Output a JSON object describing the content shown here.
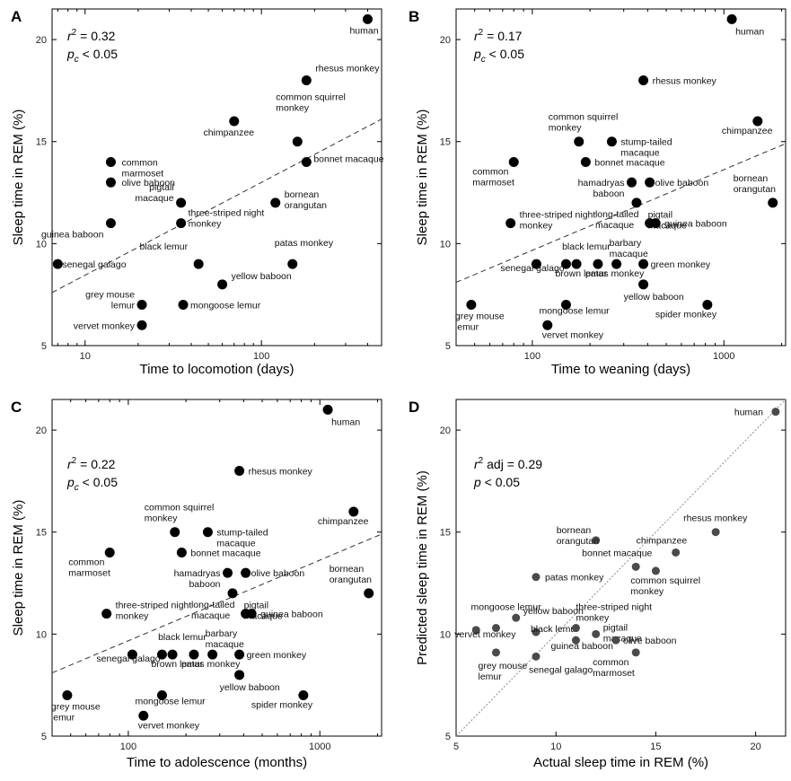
{
  "chart_data": [
    {
      "type": "scatter",
      "panel": "A",
      "xscale": "log",
      "xlabel": "Time to locomotion (days)",
      "ylabel": "Sleep time in REM (%)",
      "xlim": [
        6.5,
        480
      ],
      "ylim": [
        5,
        21.5
      ],
      "xticks": [
        10,
        100
      ],
      "xtick_labels": [
        "10",
        "100"
      ],
      "yticks": [
        5,
        10,
        15,
        20
      ],
      "ytick_labels": [
        "5",
        "10",
        "15",
        "20"
      ],
      "stats": [
        {
          "pre": "r",
          "sup": "2",
          "post": " = 0.32"
        },
        {
          "pre": "p",
          "sub": "c",
          "post": " < 0.05"
        }
      ],
      "fit": {
        "x": [
          6.5,
          480
        ],
        "y": [
          7.6,
          16.1
        ]
      },
      "points": [
        {
          "x": 7,
          "y": 9,
          "label": "senegal galago"
        },
        {
          "x": 14,
          "y": 14,
          "label": "common marmoset"
        },
        {
          "x": 14,
          "y": 13,
          "label": "olive baboon"
        },
        {
          "x": 14,
          "y": 11,
          "label": "guinea baboon"
        },
        {
          "x": 21,
          "y": 7,
          "label": "grey mouse lemur"
        },
        {
          "x": 21,
          "y": 6,
          "label": "vervet monkey"
        },
        {
          "x": 35,
          "y": 12,
          "label": "pigtail macaque"
        },
        {
          "x": 35,
          "y": 11,
          "label": "three-striped night monkey"
        },
        {
          "x": 36,
          "y": 7,
          "label": "mongoose lemur"
        },
        {
          "x": 44,
          "y": 9,
          "label": "black lemur"
        },
        {
          "x": 70,
          "y": 16,
          "label": "chimpanzee"
        },
        {
          "x": 60,
          "y": 8,
          "label": "yellow baboon"
        },
        {
          "x": 120,
          "y": 12,
          "label": "bornean orangutan"
        },
        {
          "x": 150,
          "y": 9,
          "label": "patas monkey"
        },
        {
          "x": 160,
          "y": 15,
          "label": "common squirrel monkey"
        },
        {
          "x": 180,
          "y": 18,
          "label": "rhesus monkey"
        },
        {
          "x": 180,
          "y": 14,
          "label": "bonnet macaque"
        },
        {
          "x": 400,
          "y": 21,
          "label": "human"
        }
      ]
    },
    {
      "type": "scatter",
      "panel": "B",
      "xscale": "log",
      "xlabel": "Time to weaning (days)",
      "ylabel": "Sleep time in REM (%)",
      "xlim": [
        40,
        2100
      ],
      "ylim": [
        5,
        21.5
      ],
      "xticks": [
        100,
        1000
      ],
      "xtick_labels": [
        "100",
        "1000"
      ],
      "yticks": [
        5,
        10,
        15,
        20
      ],
      "ytick_labels": [
        "5",
        "10",
        "15",
        "20"
      ],
      "stats": [
        {
          "pre": "r",
          "sup": "2",
          "post": " = 0.17"
        },
        {
          "pre": "p",
          "sub": "c",
          "post": " < 0.05"
        }
      ],
      "fit": {
        "x": [
          40,
          2100
        ],
        "y": [
          8.1,
          14.9
        ]
      },
      "points": [
        {
          "x": 48,
          "y": 7,
          "label": "grey mouse lemur"
        },
        {
          "x": 80,
          "y": 14,
          "label": "common marmoset"
        },
        {
          "x": 77,
          "y": 11,
          "label": "three-striped night monkey"
        },
        {
          "x": 105,
          "y": 9,
          "label": "senegal galago"
        },
        {
          "x": 120,
          "y": 6,
          "label": "vervet monkey"
        },
        {
          "x": 150,
          "y": 9,
          "label": "brown lemur"
        },
        {
          "x": 150,
          "y": 7,
          "label": "mongoose lemur"
        },
        {
          "x": 170,
          "y": 9,
          "label": "black lemur"
        },
        {
          "x": 175,
          "y": 15,
          "label": "common squirrel monkey"
        },
        {
          "x": 190,
          "y": 14,
          "label": "bonnet macaque"
        },
        {
          "x": 220,
          "y": 9,
          "label": "patas monkey"
        },
        {
          "x": 260,
          "y": 15,
          "label": "stump-tailed macaque"
        },
        {
          "x": 275,
          "y": 9,
          "label": "barbary macaque"
        },
        {
          "x": 330,
          "y": 13,
          "label": "hamadryas baboon"
        },
        {
          "x": 350,
          "y": 12,
          "label": "long-tailed macaque"
        },
        {
          "x": 380,
          "y": 18,
          "label": "rhesus monkey"
        },
        {
          "x": 380,
          "y": 9,
          "label": "green monkey"
        },
        {
          "x": 380,
          "y": 8,
          "label": "yellow baboon"
        },
        {
          "x": 410,
          "y": 13,
          "label": "olive baboon"
        },
        {
          "x": 410,
          "y": 11,
          "label": "pigtail macaque"
        },
        {
          "x": 440,
          "y": 11,
          "label": "guinea baboon"
        },
        {
          "x": 820,
          "y": 7,
          "label": "spider monkey"
        },
        {
          "x": 1100,
          "y": 21,
          "label": "human"
        },
        {
          "x": 1500,
          "y": 16,
          "label": "chimpanzee"
        },
        {
          "x": 1800,
          "y": 12,
          "label": "bornean orangutan"
        }
      ]
    },
    {
      "type": "scatter",
      "panel": "C",
      "xscale": "log",
      "xlabel": "Time to adolescence (months)",
      "ylabel": "Sleep time in REM (%)",
      "xlim": [
        40,
        2100
      ],
      "ylim": [
        5,
        21.5
      ],
      "xticks": [
        100,
        1000
      ],
      "xtick_labels": [
        "100",
        "1000"
      ],
      "yticks": [
        5,
        10,
        15,
        20
      ],
      "ytick_labels": [
        "5",
        "10",
        "15",
        "20"
      ],
      "stats": [
        {
          "pre": "r",
          "sup": "2",
          "post": " = 0.22"
        },
        {
          "pre": "p",
          "sub": "c",
          "post": " < 0.05"
        }
      ],
      "fit": {
        "x": [
          40,
          2100
        ],
        "y": [
          8.1,
          14.9
        ]
      },
      "points": [
        {
          "x": 48,
          "y": 7,
          "label": "grey mouse lemur"
        },
        {
          "x": 80,
          "y": 14,
          "label": "common marmoset"
        },
        {
          "x": 77,
          "y": 11,
          "label": "three-striped night monkey"
        },
        {
          "x": 105,
          "y": 9,
          "label": "senegal galago"
        },
        {
          "x": 120,
          "y": 6,
          "label": "vervet monkey"
        },
        {
          "x": 150,
          "y": 9,
          "label": "brown lemur"
        },
        {
          "x": 150,
          "y": 7,
          "label": "mongoose lemur"
        },
        {
          "x": 170,
          "y": 9,
          "label": "black lemur"
        },
        {
          "x": 175,
          "y": 15,
          "label": "common squirrel monkey"
        },
        {
          "x": 190,
          "y": 14,
          "label": "bonnet macaque"
        },
        {
          "x": 220,
          "y": 9,
          "label": "patas monkey"
        },
        {
          "x": 260,
          "y": 15,
          "label": "stump-tailed macaque"
        },
        {
          "x": 275,
          "y": 9,
          "label": "barbary macaque"
        },
        {
          "x": 330,
          "y": 13,
          "label": "hamadryas baboon"
        },
        {
          "x": 350,
          "y": 12,
          "label": "long-tailed macaque"
        },
        {
          "x": 380,
          "y": 18,
          "label": "rhesus monkey"
        },
        {
          "x": 380,
          "y": 9,
          "label": "green monkey"
        },
        {
          "x": 380,
          "y": 8,
          "label": "yellow baboon"
        },
        {
          "x": 410,
          "y": 13,
          "label": "olive baboon"
        },
        {
          "x": 410,
          "y": 11,
          "label": "pigtail macaque"
        },
        {
          "x": 440,
          "y": 11,
          "label": "guinea baboon"
        },
        {
          "x": 820,
          "y": 7,
          "label": "spider monkey"
        },
        {
          "x": 1100,
          "y": 21,
          "label": "human"
        },
        {
          "x": 1500,
          "y": 16,
          "label": "chimpanzee"
        },
        {
          "x": 1800,
          "y": 12,
          "label": "bornean orangutan"
        }
      ]
    },
    {
      "type": "scatter",
      "panel": "D",
      "xscale": "linear",
      "xlabel": "Actual sleep time in REM (%)",
      "ylabel": "Predicted sleep time in REM (%)",
      "xlim": [
        5,
        21.5
      ],
      "ylim": [
        5,
        21.5
      ],
      "xticks": [
        5,
        10,
        15,
        20
      ],
      "xtick_labels": [
        "5",
        "10",
        "15",
        "20"
      ],
      "yticks": [
        5,
        10,
        15,
        20
      ],
      "ytick_labels": [
        "5",
        "10",
        "15",
        "20"
      ],
      "stats": [
        {
          "pre": "r",
          "sup": "2",
          "post": " adj = 0.29",
          "italic_pre_only": true
        },
        {
          "pre": "p",
          "post": " < 0.05"
        }
      ],
      "fit": {
        "x": [
          5,
          21.5
        ],
        "y": [
          5,
          21.5
        ]
      },
      "points": [
        {
          "x": 6,
          "y": 10.2,
          "label": "vervet monkey"
        },
        {
          "x": 7,
          "y": 10.3,
          "label": "mongoose lemur"
        },
        {
          "x": 7,
          "y": 9.1,
          "label": "grey mouse lemur"
        },
        {
          "x": 8,
          "y": 10.8,
          "label": "yellow baboon"
        },
        {
          "x": 9,
          "y": 10.1,
          "label": "black lemur"
        },
        {
          "x": 9,
          "y": 8.9,
          "label": "senegal galago"
        },
        {
          "x": 9,
          "y": 12.8,
          "label": "patas monkey"
        },
        {
          "x": 11,
          "y": 10.3,
          "label": "three-striped night monkey"
        },
        {
          "x": 11,
          "y": 9.7,
          "label": "guinea baboon"
        },
        {
          "x": 12,
          "y": 14.6,
          "label": "bornean orangutan"
        },
        {
          "x": 12,
          "y": 10.0,
          "label": "pigtail macaque"
        },
        {
          "x": 13,
          "y": 9.7,
          "label": "olive baboon"
        },
        {
          "x": 14,
          "y": 13.3,
          "label": "bonnet macaque"
        },
        {
          "x": 14,
          "y": 9.1,
          "label": "common marmoset"
        },
        {
          "x": 15,
          "y": 13.1,
          "label": "common squirrel monkey"
        },
        {
          "x": 16,
          "y": 14.0,
          "label": "chimpanzee"
        },
        {
          "x": 18,
          "y": 15.0,
          "label": "rhesus monkey"
        },
        {
          "x": 21,
          "y": 20.9,
          "label": "human"
        }
      ]
    }
  ]
}
